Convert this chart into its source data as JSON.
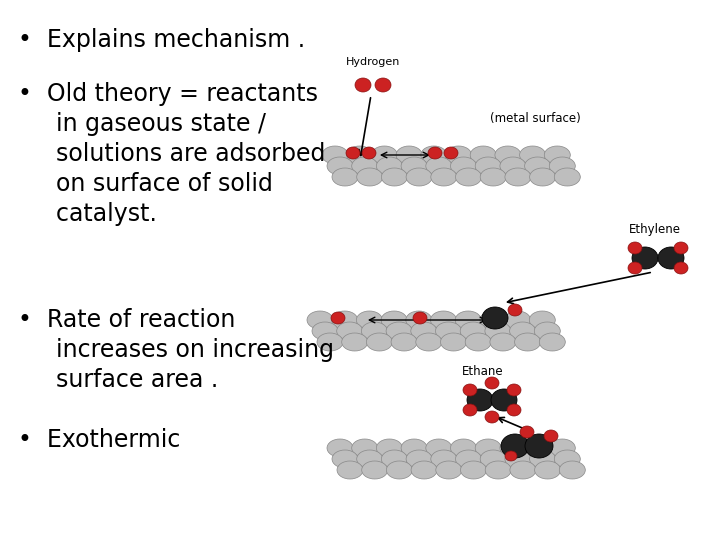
{
  "bg_color": "#ffffff",
  "bullet_points": [
    [
      "Explains mechanism ."
    ],
    [
      "Old theory = reactants",
      "in gaseous state /",
      "solutions are adsorbed",
      "on surface of solid",
      "catalyst."
    ],
    [
      "Rate of reaction",
      "increases on increasing",
      "surface area ."
    ],
    [
      "Exothermic"
    ]
  ],
  "text_fontsize": 17,
  "text_color": "#000000",
  "font_family": "DejaVu Sans",
  "label_hydrogen": "Hydrogen",
  "label_metal": "(metal surface)",
  "label_ethylene": "Ethylene",
  "label_ethane": "Ethane",
  "sphere_color": "#bebebe",
  "sphere_edge": "#888888",
  "red_color": "#cc2222",
  "red_edge": "#881111",
  "dark_color": "#222222",
  "dark_edge": "#000000",
  "figsize": [
    7.2,
    5.4
  ],
  "dpi": 100
}
